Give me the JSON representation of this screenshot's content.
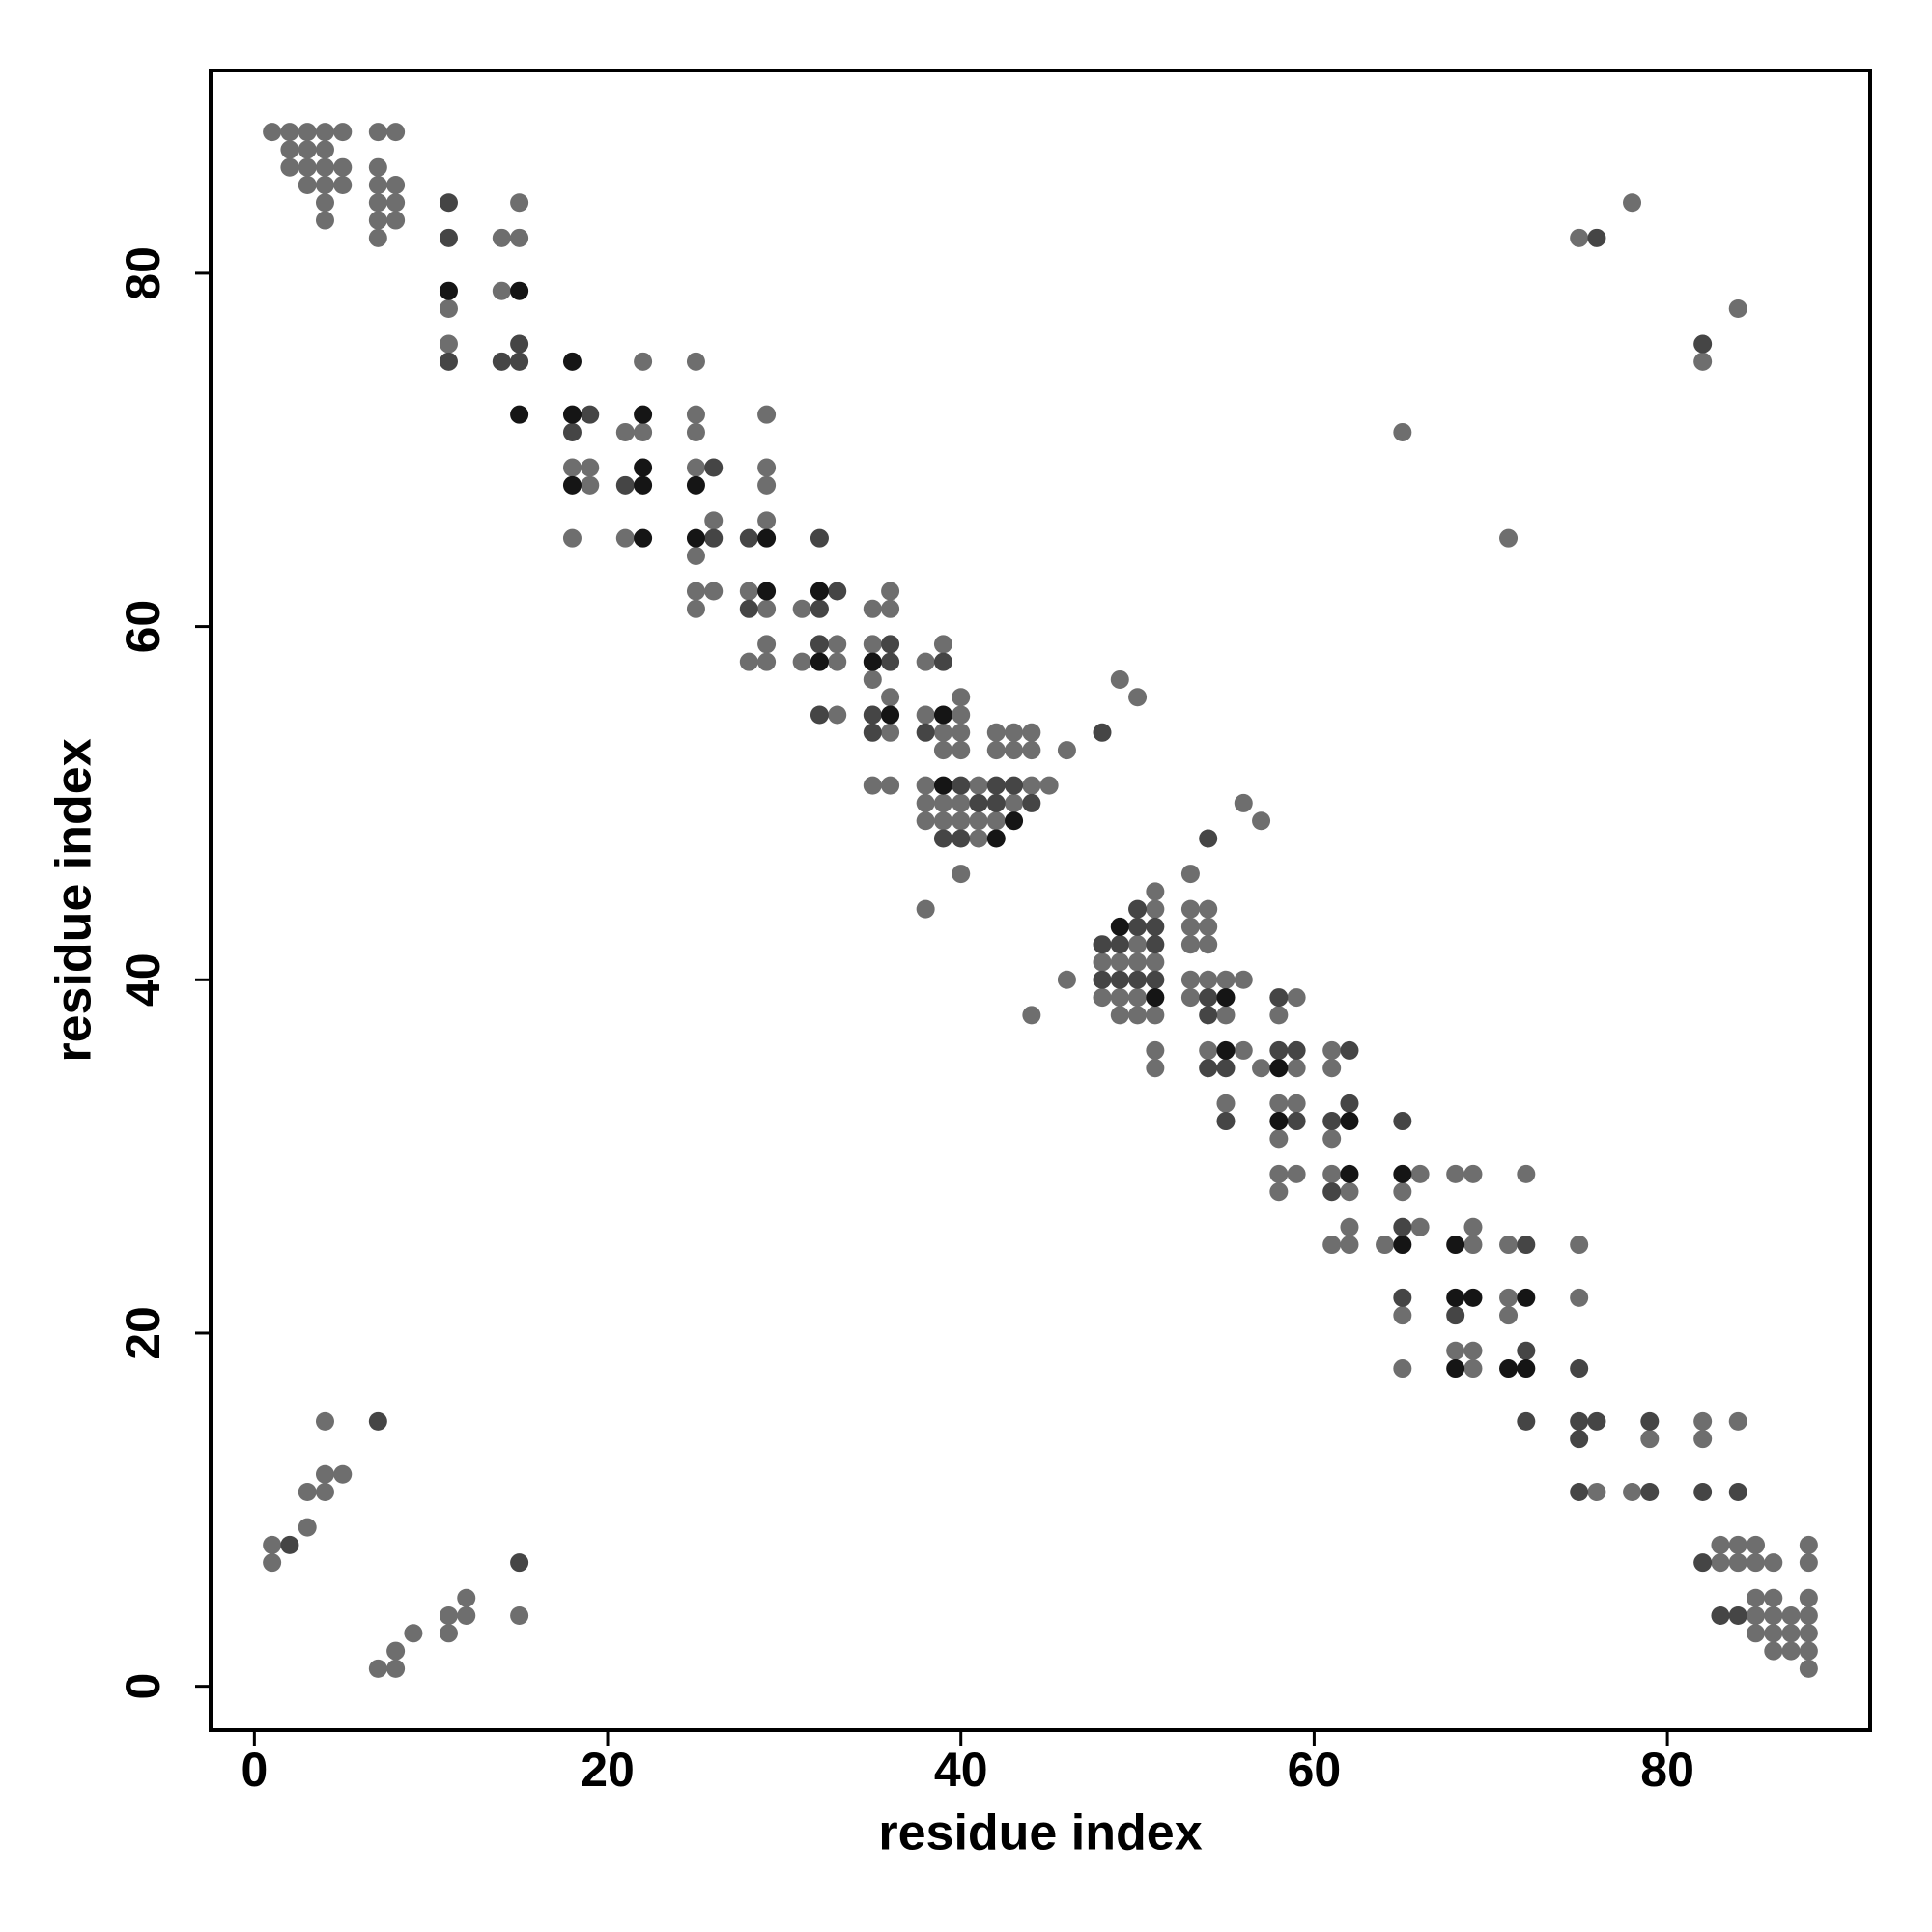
{
  "chart_data": {
    "type": "scatter",
    "x_label": "residue index",
    "y_label": "residue index",
    "xlim": [
      -2.48,
      91.48
    ],
    "ylim": [
      -2.48,
      91.48
    ],
    "xticks": [
      0,
      20,
      40,
      60,
      80
    ],
    "yticks": [
      0,
      20,
      40,
      60,
      80
    ],
    "grid": false,
    "series": [
      {
        "color": "#6e6e6e",
        "x": [
          1,
          2,
          3,
          4,
          5,
          7,
          8,
          2,
          3,
          4,
          2,
          3,
          4,
          5,
          7,
          3,
          4,
          5,
          7,
          8,
          4,
          7,
          8,
          15,
          78,
          4,
          7,
          8,
          7,
          14,
          15,
          75,
          14,
          11,
          84,
          11,
          22,
          25,
          82,
          25,
          29,
          21,
          22,
          25,
          65,
          18,
          19,
          25,
          29,
          19,
          29,
          26,
          29,
          18,
          21,
          71,
          25,
          25,
          26,
          28,
          36,
          25,
          29,
          31,
          35,
          36,
          29,
          33,
          35,
          39,
          28,
          29,
          31,
          33,
          38,
          35,
          49,
          36,
          40,
          50,
          33,
          38,
          40,
          36,
          39,
          40,
          42,
          43,
          44,
          39,
          40,
          42,
          43,
          44,
          46,
          35,
          36,
          38,
          41,
          44,
          45,
          38,
          39,
          40,
          43,
          56,
          38,
          39,
          40,
          41,
          42,
          57,
          41,
          40,
          53,
          51,
          38,
          51,
          53,
          54,
          53,
          54,
          50,
          53,
          54,
          48,
          49,
          50,
          51,
          46,
          53,
          54,
          55,
          56,
          48,
          49,
          50,
          53,
          59,
          44,
          49,
          50,
          51,
          55,
          58,
          51,
          54,
          56,
          61,
          51,
          57,
          59,
          61,
          55,
          58,
          59,
          58,
          61,
          58,
          59,
          61,
          66,
          68,
          69,
          72,
          58,
          62,
          65,
          62,
          66,
          69,
          61,
          62,
          64,
          69,
          71,
          75,
          71,
          75,
          65,
          71,
          68,
          69,
          65,
          69,
          4,
          82,
          84,
          79,
          82,
          4,
          5,
          3,
          4,
          76,
          78,
          3,
          1,
          83,
          84,
          85,
          88,
          1,
          83,
          84,
          85,
          86,
          88,
          12,
          85,
          86,
          88,
          11,
          12,
          15,
          85,
          86,
          87,
          88,
          9,
          11,
          85,
          86,
          87,
          88,
          8,
          86,
          87,
          88,
          7,
          8,
          88
        ],
        "values": [
          88,
          88,
          88,
          88,
          88,
          88,
          88,
          87,
          87,
          87,
          86,
          86,
          86,
          86,
          86,
          85,
          85,
          85,
          85,
          85,
          84,
          84,
          84,
          84,
          84,
          83,
          83,
          83,
          82,
          82,
          82,
          82,
          79,
          78,
          78,
          76,
          75,
          75,
          75,
          72,
          72,
          71,
          71,
          71,
          71,
          69,
          69,
          69,
          69,
          68,
          68,
          66,
          66,
          65,
          65,
          65,
          64,
          62,
          62,
          62,
          62,
          61,
          61,
          61,
          61,
          61,
          59,
          59,
          59,
          59,
          58,
          58,
          58,
          58,
          58,
          57,
          57,
          56,
          56,
          56,
          55,
          55,
          55,
          54,
          54,
          54,
          54,
          54,
          54,
          53,
          53,
          53,
          53,
          53,
          53,
          51,
          51,
          51,
          51,
          51,
          51,
          50,
          50,
          50,
          50,
          50,
          49,
          49,
          49,
          49,
          49,
          49,
          48,
          46,
          46,
          45,
          44,
          44,
          44,
          44,
          43,
          43,
          42,
          42,
          42,
          41,
          41,
          41,
          41,
          40,
          40,
          40,
          40,
          40,
          39,
          39,
          39,
          39,
          39,
          38,
          38,
          38,
          38,
          38,
          38,
          36,
          36,
          36,
          36,
          35,
          35,
          35,
          35,
          33,
          33,
          33,
          31,
          31,
          29,
          29,
          29,
          29,
          29,
          29,
          29,
          28,
          28,
          28,
          26,
          26,
          26,
          25,
          25,
          25,
          25,
          25,
          25,
          22,
          22,
          21,
          21,
          19,
          19,
          18,
          18,
          15,
          15,
          15,
          14,
          14,
          12,
          12,
          11,
          11,
          11,
          11,
          9,
          8,
          8,
          8,
          8,
          8,
          7,
          7,
          7,
          7,
          7,
          7,
          5,
          5,
          5,
          5,
          4,
          4,
          4,
          4,
          4,
          4,
          4,
          3,
          3,
          3,
          3,
          3,
          3,
          2,
          2,
          2,
          2,
          1,
          1,
          1
        ]
      },
      {
        "color": "#454545",
        "x": [
          11,
          11,
          76,
          15,
          82,
          11,
          14,
          15,
          19,
          18,
          26,
          21,
          26,
          28,
          32,
          33,
          28,
          32,
          32,
          36,
          36,
          39,
          32,
          35,
          35,
          38,
          48,
          40,
          42,
          43,
          41,
          42,
          44,
          39,
          40,
          54,
          50,
          50,
          51,
          48,
          49,
          51,
          48,
          49,
          50,
          51,
          54,
          58,
          54,
          58,
          59,
          62,
          54,
          55,
          62,
          55,
          59,
          61,
          65,
          61,
          65,
          72,
          65,
          68,
          72,
          75,
          7,
          72,
          75,
          76,
          79,
          75,
          75,
          79,
          82,
          84,
          2,
          15,
          82,
          83,
          84
        ],
        "values": [
          84,
          82,
          82,
          76,
          76,
          75,
          75,
          75,
          72,
          71,
          69,
          68,
          65,
          65,
          65,
          62,
          61,
          61,
          59,
          59,
          58,
          58,
          55,
          55,
          54,
          54,
          54,
          51,
          51,
          51,
          50,
          50,
          50,
          48,
          48,
          48,
          44,
          43,
          43,
          42,
          42,
          42,
          40,
          40,
          40,
          40,
          39,
          39,
          38,
          36,
          36,
          36,
          35,
          35,
          33,
          32,
          32,
          32,
          32,
          28,
          26,
          25,
          22,
          21,
          19,
          18,
          15,
          15,
          15,
          15,
          15,
          14,
          11,
          11,
          11,
          11,
          8,
          7,
          7,
          4,
          4
        ]
      },
      {
        "color": "#151515",
        "x": [
          11,
          15,
          18,
          15,
          18,
          22,
          22,
          18,
          22,
          25,
          22,
          25,
          29,
          29,
          32,
          32,
          35,
          36,
          39,
          39,
          43,
          42,
          49,
          51,
          55,
          55,
          58,
          58,
          62,
          62,
          65,
          65,
          68,
          68,
          69,
          72,
          68,
          71,
          72
        ],
        "values": [
          79,
          79,
          75,
          72,
          72,
          72,
          69,
          68,
          68,
          68,
          65,
          65,
          65,
          62,
          62,
          58,
          58,
          55,
          55,
          51,
          49,
          48,
          43,
          39,
          39,
          36,
          35,
          32,
          32,
          29,
          29,
          25,
          25,
          22,
          22,
          22,
          18,
          18,
          18
        ]
      }
    ]
  }
}
